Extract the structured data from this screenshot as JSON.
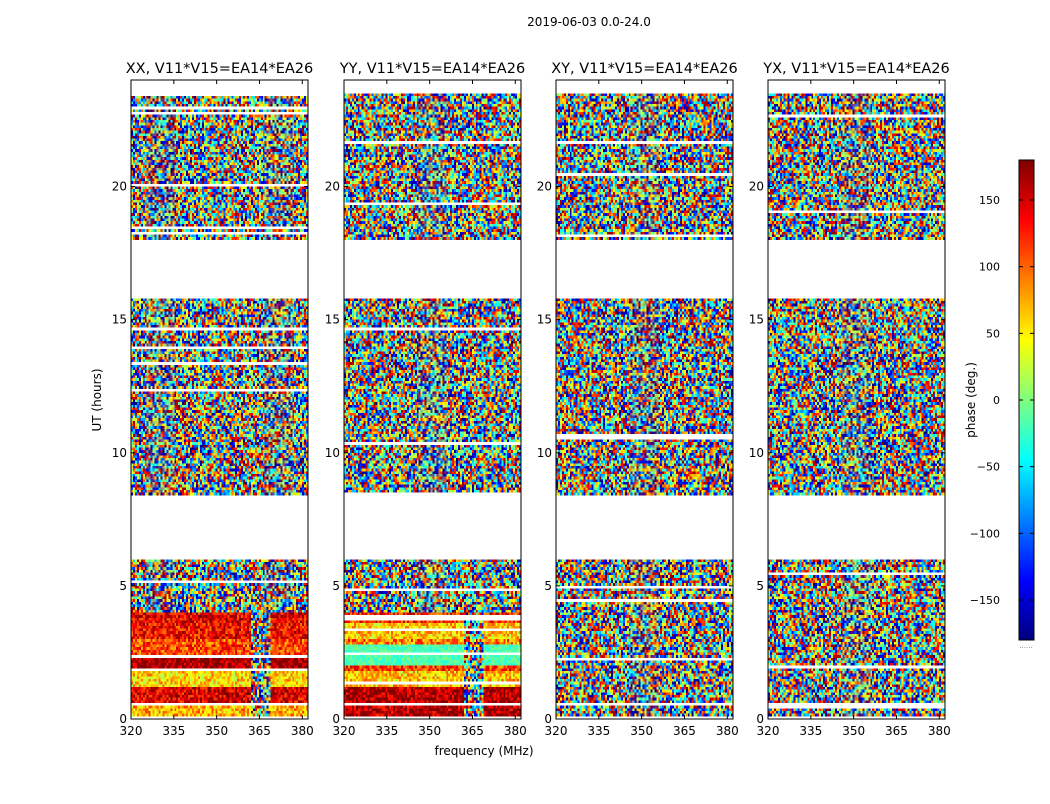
{
  "figure": {
    "suptitle": "2019-06-03 0.0-24.0",
    "xlabel": "frequency (MHz)",
    "ylabel": "UT (hours)"
  },
  "colorbar": {
    "label": "phase (deg.)",
    "range": [
      -180,
      180
    ],
    "ticks": [
      150,
      100,
      50,
      0,
      -50,
      -100,
      -150
    ],
    "tick_labels": [
      "150",
      "100",
      "50",
      "0",
      "−50",
      "−100",
      "−150"
    ],
    "footer": "......",
    "colors": [
      "#00007f",
      "#0000ff",
      "#007fff",
      "#00ffff",
      "#7fff7f",
      "#ffff00",
      "#ff7f00",
      "#ff0000",
      "#7f0000"
    ]
  },
  "chart_data": [
    {
      "type": "heatmap",
      "title": "XX, V11*V15=EA14*EA26",
      "xlim": [
        320,
        382
      ],
      "ylim": [
        0,
        24
      ],
      "xticks": [
        320,
        335,
        350,
        365,
        380
      ],
      "xtick_labels": [
        "320",
        "335",
        "350",
        "365",
        "380"
      ],
      "yticks": [
        0,
        5,
        10,
        15,
        20
      ],
      "ytick_labels": [
        "0",
        "5",
        "10",
        "15",
        "20"
      ],
      "mode": "coherent"
    },
    {
      "type": "heatmap",
      "title": "YY, V11*V15=EA14*EA26",
      "xlim": [
        320,
        382
      ],
      "ylim": [
        0,
        24
      ],
      "xticks": [
        320,
        335,
        350,
        365,
        380
      ],
      "xtick_labels": [
        "320",
        "335",
        "350",
        "365",
        "380"
      ],
      "yticks": [
        0,
        5,
        10,
        15,
        20
      ],
      "ytick_labels": [
        "0",
        "5",
        "10",
        "15",
        "20"
      ],
      "mode": "coherent"
    },
    {
      "type": "heatmap",
      "title": "XY, V11*V15=EA14*EA26",
      "xlim": [
        320,
        382
      ],
      "ylim": [
        0,
        24
      ],
      "xticks": [
        320,
        335,
        350,
        365,
        380
      ],
      "xtick_labels": [
        "320",
        "335",
        "350",
        "365",
        "380"
      ],
      "yticks": [
        0,
        5,
        10,
        15,
        20
      ],
      "ytick_labels": [
        "0",
        "5",
        "10",
        "15",
        "20"
      ],
      "mode": "noise"
    },
    {
      "type": "heatmap",
      "title": "YX, V11*V15=EA14*EA26",
      "xlim": [
        320,
        382
      ],
      "ylim": [
        0,
        24
      ],
      "xticks": [
        320,
        335,
        350,
        365,
        380
      ],
      "xtick_labels": [
        "320",
        "335",
        "350",
        "365",
        "380"
      ],
      "yticks": [
        0,
        5,
        10,
        15,
        20
      ],
      "ytick_labels": [
        "0",
        "5",
        "10",
        "15",
        "20"
      ],
      "mode": "noise"
    }
  ],
  "flagged_ut_hours": [
    [
      0.0,
      0.12
    ],
    [
      0.5,
      0.6
    ],
    [
      6.0,
      8.4
    ],
    [
      15.85,
      18.0
    ],
    [
      23.55,
      24.0
    ]
  ],
  "flagged_freq_mhz": [
    [
      362,
      369
    ]
  ]
}
